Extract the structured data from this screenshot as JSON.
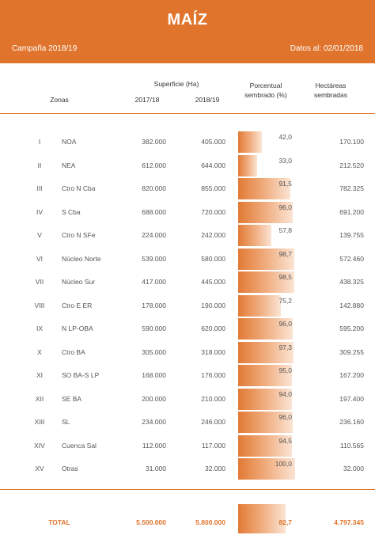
{
  "header": {
    "title": "MAÍZ",
    "campaign": "Campaña 2018/19",
    "data_date": "Datos al: 02/01/2018"
  },
  "columns": {
    "zonas": "Zonas",
    "superficie": "Superficie (Ha)",
    "y1": "2017/18",
    "y2": "2018/19",
    "porcentual_1": "Porcentual",
    "porcentual_2": "sembrado (%)",
    "hectareas_1": "Hectáreas",
    "hectareas_2": "sembradas"
  },
  "rows": [
    {
      "num": "I",
      "zona": "NOA",
      "s17": "382.000",
      "s18": "405.000",
      "pct_label": "42,0",
      "pct": 42.0,
      "ha": "170.100"
    },
    {
      "num": "II",
      "zona": "NEA",
      "s17": "612.000",
      "s18": "644.000",
      "pct_label": "33,0",
      "pct": 33.0,
      "ha": "212.520"
    },
    {
      "num": "III",
      "zona": "Ctro N Cba",
      "s17": "820.000",
      "s18": "855.000",
      "pct_label": "91,5",
      "pct": 91.5,
      "ha": "782.325"
    },
    {
      "num": "IV",
      "zona": "S Cba",
      "s17": "688.000",
      "s18": "720.000",
      "pct_label": "96,0",
      "pct": 96.0,
      "ha": "691.200"
    },
    {
      "num": "V",
      "zona": "Ctro N SFe",
      "s17": "224.000",
      "s18": "242.000",
      "pct_label": "57,8",
      "pct": 57.8,
      "ha": "139.755"
    },
    {
      "num": "VI",
      "zona": "Núcleo Norte",
      "s17": "539.000",
      "s18": "580.000",
      "pct_label": "98,7",
      "pct": 98.7,
      "ha": "572.460"
    },
    {
      "num": "VII",
      "zona": "Núcleo Sur",
      "s17": "417.000",
      "s18": "445.000",
      "pct_label": "98,5",
      "pct": 98.5,
      "ha": "438.325"
    },
    {
      "num": "VIII",
      "zona": "Ctro E ER",
      "s17": "178.000",
      "s18": "190.000",
      "pct_label": "75,2",
      "pct": 75.2,
      "ha": "142.880"
    },
    {
      "num": "IX",
      "zona": "N LP-OBA",
      "s17": "590.000",
      "s18": "620.000",
      "pct_label": "96,0",
      "pct": 96.0,
      "ha": "595.200"
    },
    {
      "num": "X",
      "zona": "Ctro BA",
      "s17": "305.000",
      "s18": "318.000",
      "pct_label": "97,3",
      "pct": 97.3,
      "ha": "309.255"
    },
    {
      "num": "XI",
      "zona": "SO BA-S LP",
      "s17": "168.000",
      "s18": "176.000",
      "pct_label": "95,0",
      "pct": 95.0,
      "ha": "167.200"
    },
    {
      "num": "XII",
      "zona": "SE BA",
      "s17": "200.000",
      "s18": "210.000",
      "pct_label": "94,0",
      "pct": 94.0,
      "ha": "197.400"
    },
    {
      "num": "XIII",
      "zona": "SL",
      "s17": "234.000",
      "s18": "246.000",
      "pct_label": "96,0",
      "pct": 96.0,
      "ha": "236.160"
    },
    {
      "num": "XIV",
      "zona": "Cuenca Sal",
      "s17": "112.000",
      "s18": "117.000",
      "pct_label": "94,5",
      "pct": 94.5,
      "ha": "110.565"
    },
    {
      "num": "XV",
      "zona": "Otras",
      "s17": "31.000",
      "s18": "32.000",
      "pct_label": "100,0",
      "pct": 100.0,
      "ha": "32.000"
    }
  ],
  "total": {
    "label": "TOTAL",
    "s17": "5.500.000",
    "s18": "5.800.000",
    "pct_label": "82,7",
    "pct": 82.7,
    "ha": "4.797.345"
  },
  "colors": {
    "accent": "#e0742c"
  }
}
